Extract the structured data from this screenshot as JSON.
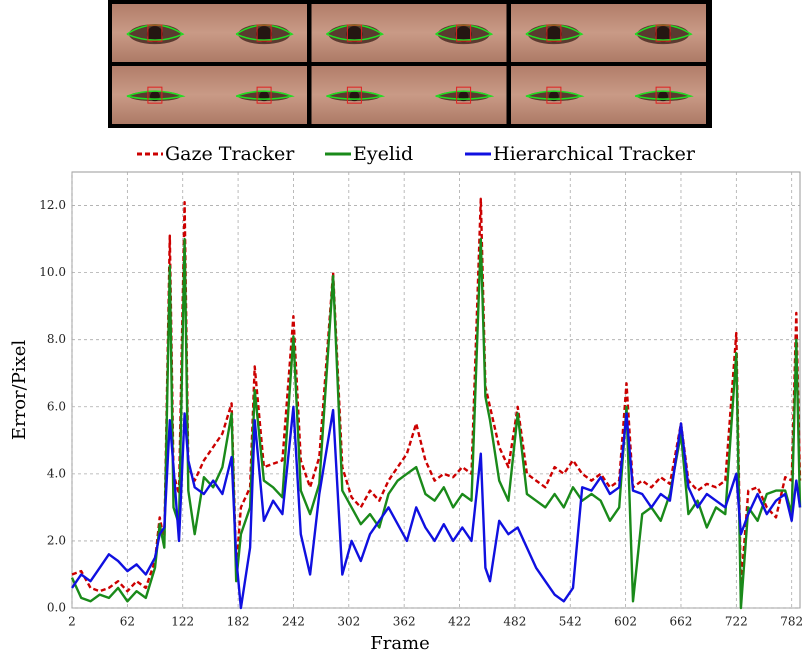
{
  "chart_data": {
    "type": "line",
    "x_label": "Frame",
    "y_label": "Error/Pixel",
    "xlim": [
      2,
      791
    ],
    "ylim": [
      0,
      13
    ],
    "xticks": [
      2,
      62,
      122,
      182,
      242,
      302,
      362,
      422,
      482,
      542,
      602,
      662,
      722,
      782
    ],
    "yticks": [
      {
        "value": 0,
        "label": "0.0"
      },
      {
        "value": 2,
        "label": "2.0"
      },
      {
        "value": 4,
        "label": "4.0"
      },
      {
        "value": 6,
        "label": "6.0"
      },
      {
        "value": 8,
        "label": "8.0"
      },
      {
        "value": 10,
        "label": "10.0"
      },
      {
        "value": 12,
        "label": "12.0"
      }
    ],
    "grid": true,
    "x": [
      2,
      12,
      22,
      32,
      42,
      52,
      62,
      72,
      82,
      92,
      97,
      102,
      108,
      112,
      118,
      124,
      128,
      135,
      145,
      155,
      165,
      175,
      180,
      185,
      195,
      200,
      210,
      220,
      230,
      242,
      250,
      260,
      270,
      285,
      295,
      305,
      315,
      325,
      335,
      345,
      355,
      365,
      375,
      385,
      395,
      405,
      415,
      425,
      435,
      445,
      450,
      455,
      465,
      475,
      485,
      495,
      505,
      515,
      525,
      535,
      545,
      555,
      565,
      575,
      585,
      595,
      603,
      610,
      620,
      630,
      640,
      650,
      662,
      670,
      680,
      690,
      700,
      710,
      722,
      727,
      735,
      745,
      755,
      765,
      775,
      782,
      787,
      791
    ],
    "series": [
      {
        "name": "Gaze Tracker",
        "color": "#cc0000",
        "dash": true,
        "values": [
          1.0,
          1.1,
          0.6,
          0.5,
          0.6,
          0.8,
          0.5,
          0.8,
          0.6,
          1.4,
          2.7,
          2.0,
          11.1,
          4.0,
          3.4,
          12.1,
          4.2,
          3.8,
          4.4,
          4.8,
          5.2,
          6.1,
          1.2,
          3.0,
          3.6,
          7.2,
          4.2,
          4.3,
          4.4,
          8.7,
          4.4,
          3.6,
          4.5,
          10.0,
          4.2,
          3.3,
          3.0,
          3.5,
          3.2,
          3.8,
          4.2,
          4.6,
          5.5,
          4.4,
          3.8,
          4.0,
          3.9,
          4.2,
          4.0,
          12.2,
          6.6,
          6.0,
          4.8,
          4.2,
          6.0,
          4.0,
          3.8,
          3.6,
          4.2,
          4.0,
          4.4,
          4.0,
          3.8,
          4.0,
          3.6,
          3.8,
          6.7,
          3.6,
          3.8,
          3.6,
          3.9,
          3.7,
          5.5,
          3.8,
          3.5,
          3.7,
          3.6,
          3.8,
          8.2,
          0.6,
          3.5,
          3.6,
          3.0,
          2.7,
          3.9,
          3.8,
          8.8,
          3.8
        ]
      },
      {
        "name": "Eyelid",
        "color": "#1a8a1a",
        "dash": false,
        "values": [
          0.9,
          0.3,
          0.2,
          0.4,
          0.3,
          0.6,
          0.2,
          0.5,
          0.3,
          1.2,
          2.5,
          1.8,
          10.2,
          3.0,
          2.5,
          11.0,
          3.5,
          2.2,
          3.9,
          3.6,
          4.2,
          5.8,
          0.8,
          2.2,
          3.0,
          6.5,
          3.8,
          3.6,
          3.3,
          8.1,
          3.5,
          2.8,
          3.7,
          9.9,
          3.5,
          3.0,
          2.5,
          2.8,
          2.4,
          3.4,
          3.8,
          4.0,
          4.2,
          3.4,
          3.2,
          3.6,
          3.0,
          3.4,
          3.2,
          11.0,
          6.3,
          5.6,
          3.8,
          3.2,
          5.8,
          3.4,
          3.2,
          3.0,
          3.4,
          3.0,
          3.6,
          3.2,
          3.4,
          3.2,
          2.6,
          3.0,
          6.0,
          0.2,
          2.8,
          3.0,
          2.6,
          3.4,
          5.2,
          2.8,
          3.2,
          2.4,
          3.0,
          2.8,
          7.6,
          0.0,
          3.0,
          2.6,
          3.4,
          3.5,
          3.5,
          2.8,
          8.0,
          3.0
        ]
      },
      {
        "name": "Hierarchical Tracker",
        "color": "#1010e0",
        "dash": false,
        "values": [
          0.6,
          1.0,
          0.8,
          1.2,
          1.6,
          1.4,
          1.1,
          1.3,
          1.0,
          1.5,
          2.2,
          2.4,
          5.6,
          4.2,
          2.0,
          5.8,
          4.4,
          3.6,
          3.4,
          3.8,
          3.4,
          4.5,
          1.5,
          0.0,
          1.8,
          5.6,
          2.6,
          3.2,
          2.8,
          6.0,
          2.2,
          1.0,
          3.4,
          5.9,
          1.0,
          2.0,
          1.4,
          2.2,
          2.6,
          3.0,
          2.5,
          2.0,
          3.0,
          2.4,
          2.0,
          2.5,
          2.0,
          2.4,
          2.0,
          4.6,
          1.2,
          0.8,
          2.6,
          2.2,
          2.4,
          1.8,
          1.2,
          0.8,
          0.4,
          0.2,
          0.6,
          3.6,
          3.5,
          3.9,
          3.4,
          3.6,
          5.8,
          3.5,
          3.4,
          3.0,
          3.4,
          3.2,
          5.5,
          3.6,
          3.0,
          3.4,
          3.2,
          3.0,
          4.0,
          2.2,
          2.8,
          3.4,
          2.8,
          3.2,
          3.4,
          2.6,
          3.8,
          3.0
        ]
      }
    ]
  }
}
